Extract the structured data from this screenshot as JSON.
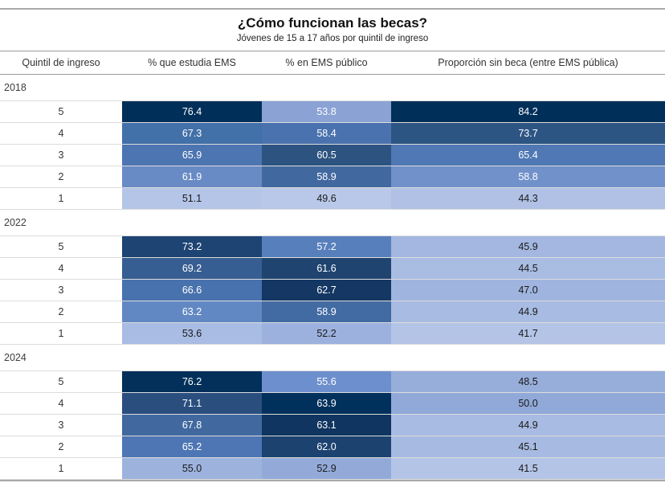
{
  "colors": {
    "scale_max": "#00305a",
    "scale_min": "#b9c8e9",
    "text_on_dark": "#ffffff",
    "text_on_light": "#1a1a1a",
    "strong_rule": "#9a9a9a",
    "light_rule": "#dcdcdc"
  },
  "chart_data": {
    "type": "heatmap",
    "title": "¿Cómo funcionan las becas?",
    "subtitle": "Jóvenes de 15 a 17 años por quintil de ingreso",
    "columns": [
      "Quintil de ingreso",
      "% que estudia EMS",
      "% en EMS público",
      "Proporción sin beca (entre EMS pública)"
    ],
    "legend_position": "none",
    "groups": [
      {
        "year": "2018",
        "rows": [
          {
            "quintil": "5",
            "cells": [
              {
                "value": "76.4",
                "bg": "#00305a",
                "fg": "#ffffff"
              },
              {
                "value": "53.8",
                "bg": "#8aa2d4",
                "fg": "#ffffff"
              },
              {
                "value": "84.2",
                "bg": "#002f59",
                "fg": "#ffffff"
              }
            ]
          },
          {
            "quintil": "4",
            "cells": [
              {
                "value": "67.3",
                "bg": "#4270a8",
                "fg": "#ffffff"
              },
              {
                "value": "58.4",
                "bg": "#4a72ae",
                "fg": "#ffffff"
              },
              {
                "value": "73.7",
                "bg": "#2d5583",
                "fg": "#ffffff"
              }
            ]
          },
          {
            "quintil": "3",
            "cells": [
              {
                "value": "65.9",
                "bg": "#4d75b1",
                "fg": "#ffffff"
              },
              {
                "value": "60.5",
                "bg": "#2d5380",
                "fg": "#ffffff"
              },
              {
                "value": "65.4",
                "bg": "#4f78b4",
                "fg": "#ffffff"
              }
            ]
          },
          {
            "quintil": "2",
            "cells": [
              {
                "value": "61.9",
                "bg": "#698bc5",
                "fg": "#ffffff"
              },
              {
                "value": "58.9",
                "bg": "#42699f",
                "fg": "#ffffff"
              },
              {
                "value": "58.8",
                "bg": "#7191ca",
                "fg": "#ffffff"
              }
            ]
          },
          {
            "quintil": "1",
            "cells": [
              {
                "value": "51.1",
                "bg": "#b5c5e8",
                "fg": "#1a1a1a"
              },
              {
                "value": "49.6",
                "bg": "#b9c8e9",
                "fg": "#1a1a1a"
              },
              {
                "value": "44.3",
                "bg": "#b0c1e5",
                "fg": "#1a1a1a"
              }
            ]
          }
        ]
      },
      {
        "year": "2022",
        "rows": [
          {
            "quintil": "5",
            "cells": [
              {
                "value": "73.2",
                "bg": "#1d4473",
                "fg": "#ffffff"
              },
              {
                "value": "57.2",
                "bg": "#577fbc",
                "fg": "#ffffff"
              },
              {
                "value": "45.9",
                "bg": "#a3b7e0",
                "fg": "#1a1a1a"
              }
            ]
          },
          {
            "quintil": "4",
            "cells": [
              {
                "value": "69.2",
                "bg": "#375e92",
                "fg": "#ffffff"
              },
              {
                "value": "61.6",
                "bg": "#1f4470",
                "fg": "#ffffff"
              },
              {
                "value": "44.5",
                "bg": "#a9bce2",
                "fg": "#1a1a1a"
              }
            ]
          },
          {
            "quintil": "3",
            "cells": [
              {
                "value": "66.6",
                "bg": "#4872ad",
                "fg": "#ffffff"
              },
              {
                "value": "62.7",
                "bg": "#143763",
                "fg": "#ffffff"
              },
              {
                "value": "47.0",
                "bg": "#9fb4df",
                "fg": "#1a1a1a"
              }
            ]
          },
          {
            "quintil": "2",
            "cells": [
              {
                "value": "63.2",
                "bg": "#6288c4",
                "fg": "#ffffff"
              },
              {
                "value": "58.9",
                "bg": "#426ba3",
                "fg": "#ffffff"
              },
              {
                "value": "44.9",
                "bg": "#a8bbe2",
                "fg": "#1a1a1a"
              }
            ]
          },
          {
            "quintil": "1",
            "cells": [
              {
                "value": "53.6",
                "bg": "#a9bce4",
                "fg": "#1a1a1a"
              },
              {
                "value": "52.2",
                "bg": "#9cb1de",
                "fg": "#1a1a1a"
              },
              {
                "value": "41.7",
                "bg": "#b4c4e7",
                "fg": "#1a1a1a"
              }
            ]
          }
        ]
      },
      {
        "year": "2024",
        "rows": [
          {
            "quintil": "5",
            "cells": [
              {
                "value": "76.2",
                "bg": "#03305a",
                "fg": "#ffffff"
              },
              {
                "value": "55.6",
                "bg": "#6e8fce",
                "fg": "#ffffff"
              },
              {
                "value": "48.5",
                "bg": "#97aeda",
                "fg": "#1a1a1a"
              }
            ]
          },
          {
            "quintil": "4",
            "cells": [
              {
                "value": "71.1",
                "bg": "#2a4f7f",
                "fg": "#ffffff"
              },
              {
                "value": "63.9",
                "bg": "#00305c",
                "fg": "#ffffff"
              },
              {
                "value": "50.0",
                "bg": "#91a9d8",
                "fg": "#1a1a1a"
              }
            ]
          },
          {
            "quintil": "3",
            "cells": [
              {
                "value": "67.8",
                "bg": "#41699f",
                "fg": "#ffffff"
              },
              {
                "value": "63.1",
                "bg": "#0f3560",
                "fg": "#ffffff"
              },
              {
                "value": "44.9",
                "bg": "#a8bbe2",
                "fg": "#1a1a1a"
              }
            ]
          },
          {
            "quintil": "2",
            "cells": [
              {
                "value": "65.2",
                "bg": "#4e76b4",
                "fg": "#ffffff"
              },
              {
                "value": "62.0",
                "bg": "#1c4270",
                "fg": "#ffffff"
              },
              {
                "value": "45.1",
                "bg": "#a7bae1",
                "fg": "#1a1a1a"
              }
            ]
          },
          {
            "quintil": "1",
            "cells": [
              {
                "value": "55.0",
                "bg": "#9db3de",
                "fg": "#1a1a1a"
              },
              {
                "value": "52.9",
                "bg": "#93aad9",
                "fg": "#1a1a1a"
              },
              {
                "value": "41.5",
                "bg": "#b4c4e7",
                "fg": "#1a1a1a"
              }
            ]
          }
        ]
      }
    ]
  }
}
